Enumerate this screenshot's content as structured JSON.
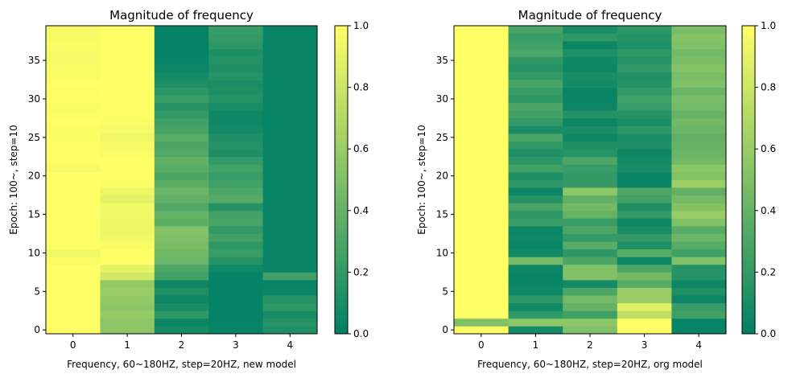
{
  "chart_data": [
    {
      "type": "heatmap",
      "title": "Magnitude of frequency",
      "xlabel": "Frequency, 60~180HZ, step=20HZ, new model",
      "ylabel": "Epoch: 100~, step=10",
      "x_ticks": [
        "0",
        "1",
        "2",
        "3",
        "4"
      ],
      "y_ticks": [
        "0",
        "5",
        "10",
        "15",
        "20",
        "25",
        "30",
        "35"
      ],
      "colorbar_ticks": [
        "0.0",
        "0.2",
        "0.4",
        "0.6",
        "0.8",
        "1.0"
      ],
      "vmin": 0,
      "vmax": 1,
      "colormap": [
        "#008066",
        "#ffff66"
      ],
      "rows_bottom_to_top": true,
      "values": [
        [
          1.0,
          0.55,
          0.08,
          0.02,
          0.12
        ],
        [
          1.0,
          0.55,
          0.05,
          0.02,
          0.15
        ],
        [
          1.0,
          0.58,
          0.18,
          0.02,
          0.1
        ],
        [
          1.0,
          0.55,
          0.1,
          0.02,
          0.18
        ],
        [
          1.0,
          0.58,
          0.05,
          0.02,
          0.15
        ],
        [
          1.0,
          0.6,
          0.12,
          0.02,
          0.04
        ],
        [
          1.0,
          0.58,
          0.05,
          0.02,
          0.03
        ],
        [
          1.0,
          0.82,
          0.25,
          0.02,
          0.25
        ],
        [
          1.0,
          0.9,
          0.3,
          0.06,
          0.04
        ],
        [
          0.98,
          1.0,
          0.42,
          0.15,
          0.03
        ],
        [
          0.95,
          1.0,
          0.45,
          0.22,
          0.03
        ],
        [
          1.0,
          0.98,
          0.48,
          0.18,
          0.03
        ],
        [
          1.0,
          0.95,
          0.5,
          0.25,
          0.03
        ],
        [
          1.0,
          0.94,
          0.52,
          0.2,
          0.03
        ],
        [
          1.0,
          0.93,
          0.36,
          0.28,
          0.03
        ],
        [
          1.0,
          0.95,
          0.4,
          0.25,
          0.03
        ],
        [
          1.0,
          0.95,
          0.32,
          0.14,
          0.03
        ],
        [
          1.0,
          0.9,
          0.38,
          0.34,
          0.03
        ],
        [
          1.0,
          0.93,
          0.42,
          0.3,
          0.03
        ],
        [
          1.0,
          0.98,
          0.36,
          0.25,
          0.03
        ],
        [
          1.0,
          1.0,
          0.3,
          0.22,
          0.03
        ],
        [
          0.96,
          1.0,
          0.35,
          0.25,
          0.03
        ],
        [
          1.0,
          1.0,
          0.38,
          0.2,
          0.03
        ],
        [
          1.0,
          0.98,
          0.32,
          0.12,
          0.03
        ],
        [
          1.0,
          0.96,
          0.3,
          0.15,
          0.03
        ],
        [
          0.99,
          0.94,
          0.35,
          0.12,
          0.03
        ],
        [
          0.98,
          0.96,
          0.28,
          0.08,
          0.03
        ],
        [
          1.0,
          0.98,
          0.25,
          0.06,
          0.03
        ],
        [
          0.99,
          1.0,
          0.2,
          0.06,
          0.03
        ],
        [
          0.98,
          1.0,
          0.15,
          0.1,
          0.03
        ],
        [
          1.0,
          1.0,
          0.22,
          0.15,
          0.03
        ],
        [
          0.99,
          1.0,
          0.18,
          0.12,
          0.03
        ],
        [
          1.0,
          1.0,
          0.12,
          0.1,
          0.03
        ],
        [
          0.98,
          1.0,
          0.08,
          0.15,
          0.03
        ],
        [
          0.97,
          1.0,
          0.05,
          0.12,
          0.03
        ],
        [
          0.96,
          1.0,
          0.03,
          0.15,
          0.03
        ],
        [
          0.97,
          1.0,
          0.02,
          0.12,
          0.03
        ],
        [
          0.98,
          1.0,
          0.02,
          0.18,
          0.03
        ],
        [
          0.96,
          1.0,
          0.02,
          0.2,
          0.03
        ],
        [
          0.97,
          1.0,
          0.02,
          0.22,
          0.03
        ]
      ]
    },
    {
      "type": "heatmap",
      "title": "Magnitude of frequency",
      "xlabel": "Frequency, 60~180HZ, step=20HZ, org model",
      "ylabel": "Epoch: 100~, step=10",
      "x_ticks": [
        "0",
        "1",
        "2",
        "3",
        "4"
      ],
      "y_ticks": [
        "0",
        "5",
        "10",
        "15",
        "20",
        "25",
        "30",
        "35"
      ],
      "colorbar_ticks": [
        "0.0",
        "0.2",
        "0.4",
        "0.6",
        "0.8",
        "1.0"
      ],
      "vmin": 0,
      "vmax": 1,
      "colormap": [
        "#008066",
        "#ffff66"
      ],
      "rows_bottom_to_top": true,
      "values": [
        [
          1.0,
          0.08,
          0.5,
          1.0,
          0.02
        ],
        [
          0.5,
          0.55,
          0.55,
          1.0,
          0.02
        ],
        [
          1.0,
          0.18,
          0.25,
          0.75,
          0.25
        ],
        [
          1.0,
          0.06,
          0.4,
          0.88,
          0.22
        ],
        [
          1.0,
          0.18,
          0.45,
          0.6,
          0.05
        ],
        [
          1.0,
          0.06,
          0.3,
          0.6,
          0.12
        ],
        [
          1.0,
          0.04,
          0.08,
          0.35,
          0.05
        ],
        [
          1.0,
          0.03,
          0.5,
          0.45,
          0.15
        ],
        [
          1.0,
          0.05,
          0.5,
          0.3,
          0.15
        ],
        [
          1.0,
          0.45,
          0.3,
          0.05,
          0.5
        ],
        [
          1.0,
          0.06,
          0.18,
          0.35,
          0.25
        ],
        [
          1.0,
          0.04,
          0.35,
          0.12,
          0.35
        ],
        [
          1.0,
          0.06,
          0.2,
          0.2,
          0.42
        ],
        [
          1.0,
          0.05,
          0.3,
          0.1,
          0.35
        ],
        [
          1.0,
          0.22,
          0.22,
          0.05,
          0.5
        ],
        [
          1.0,
          0.18,
          0.4,
          0.2,
          0.6
        ],
        [
          1.0,
          0.28,
          0.45,
          0.12,
          0.52
        ],
        [
          1.0,
          0.15,
          0.38,
          0.25,
          0.45
        ],
        [
          1.0,
          0.05,
          0.55,
          0.3,
          0.38
        ],
        [
          1.0,
          0.18,
          0.2,
          0.03,
          0.62
        ],
        [
          1.0,
          0.12,
          0.2,
          0.03,
          0.52
        ],
        [
          1.0,
          0.25,
          0.22,
          0.1,
          0.55
        ],
        [
          1.0,
          0.18,
          0.3,
          0.08,
          0.45
        ],
        [
          1.0,
          0.12,
          0.15,
          0.05,
          0.42
        ],
        [
          1.0,
          0.2,
          0.12,
          0.12,
          0.4
        ],
        [
          1.0,
          0.28,
          0.05,
          0.1,
          0.38
        ],
        [
          1.0,
          0.1,
          0.1,
          0.18,
          0.42
        ],
        [
          1.0,
          0.2,
          0.04,
          0.1,
          0.45
        ],
        [
          1.0,
          0.25,
          0.15,
          0.15,
          0.4
        ],
        [
          1.0,
          0.3,
          0.05,
          0.22,
          0.45
        ],
        [
          1.0,
          0.18,
          0.04,
          0.25,
          0.48
        ],
        [
          1.0,
          0.22,
          0.03,
          0.2,
          0.42
        ],
        [
          1.0,
          0.28,
          0.08,
          0.15,
          0.5
        ],
        [
          1.0,
          0.2,
          0.1,
          0.12,
          0.48
        ],
        [
          1.0,
          0.15,
          0.05,
          0.2,
          0.52
        ],
        [
          1.0,
          0.18,
          0.06,
          0.15,
          0.48
        ],
        [
          1.0,
          0.3,
          0.12,
          0.18,
          0.45
        ],
        [
          1.0,
          0.25,
          0.05,
          0.12,
          0.5
        ],
        [
          1.0,
          0.22,
          0.18,
          0.15,
          0.52
        ],
        [
          1.0,
          0.28,
          0.1,
          0.18,
          0.48
        ]
      ]
    }
  ]
}
